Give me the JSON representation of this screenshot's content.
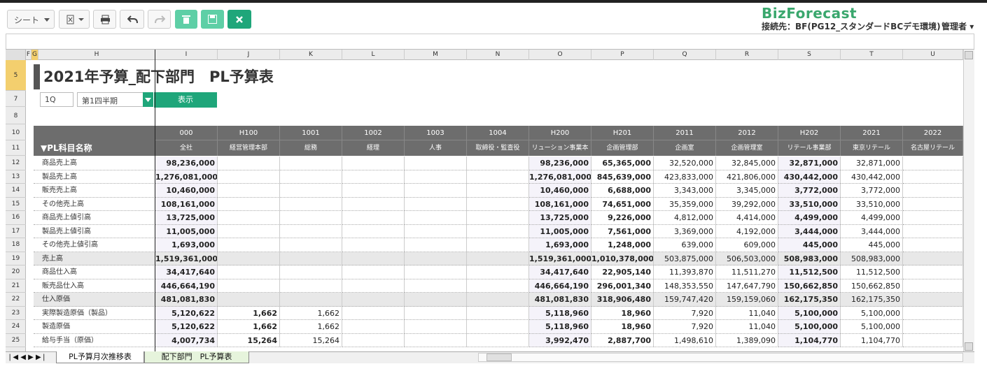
{
  "toolbar": {
    "sheet_menu": "シート",
    "logo": "BizForecast",
    "connection": "接続先：BF(PG12_スタンダードBCデモ環境)",
    "user": "管理者"
  },
  "grid": {
    "column_letters": [
      "F",
      "G",
      "H",
      "I",
      "J",
      "K",
      "L",
      "M",
      "N",
      "O",
      "P",
      "Q",
      "R",
      "S",
      "T",
      "U"
    ],
    "row_numbers": [
      5,
      7,
      8,
      10,
      11,
      12,
      13,
      14,
      15,
      16,
      17,
      18,
      19,
      20,
      21,
      22,
      23,
      24,
      25
    ]
  },
  "sheet": {
    "title": "2021年予算_配下部門　PL予算表",
    "period_code": "1Q",
    "period_select": "第1四半期",
    "show_button": "表示",
    "codes": [
      "000",
      "H100",
      "1001",
      "1002",
      "1003",
      "1004",
      "H200",
      "H201",
      "2011",
      "2012",
      "H202",
      "2021",
      "2022"
    ],
    "header_label": "▼PL科目名称",
    "departments": [
      "全社",
      "経営管理本部",
      "総務",
      "経理",
      "人事",
      "取締役・監査役",
      "リューション事業本",
      "企画管理部",
      "企画室",
      "企画管理室",
      "リテール事業部",
      "東京リテール",
      "名古屋リテール"
    ],
    "rows": [
      {
        "label": "商品売上高",
        "cells": [
          "98,236,000",
          null,
          null,
          null,
          null,
          null,
          "98,236,000",
          "65,365,000",
          "32,520,000",
          "32,845,000",
          "32,871,000",
          "32,871,000",
          null
        ]
      },
      {
        "label": "製品売上高",
        "cells": [
          "1,276,081,000",
          null,
          null,
          null,
          null,
          null,
          "1,276,081,000",
          "845,639,000",
          "423,833,000",
          "421,806,000",
          "430,442,000",
          "430,442,000",
          null
        ]
      },
      {
        "label": "販売売上高",
        "cells": [
          "10,460,000",
          null,
          null,
          null,
          null,
          null,
          "10,460,000",
          "6,688,000",
          "3,343,000",
          "3,345,000",
          "3,772,000",
          "3,772,000",
          null
        ]
      },
      {
        "label": "その他売上高",
        "cells": [
          "108,161,000",
          null,
          null,
          null,
          null,
          null,
          "108,161,000",
          "74,651,000",
          "35,359,000",
          "39,292,000",
          "33,510,000",
          "33,510,000",
          null
        ]
      },
      {
        "label": "商品売上値引高",
        "cells": [
          "13,725,000",
          null,
          null,
          null,
          null,
          null,
          "13,725,000",
          "9,226,000",
          "4,812,000",
          "4,414,000",
          "4,499,000",
          "4,499,000",
          null
        ]
      },
      {
        "label": "製品売上値引高",
        "cells": [
          "11,005,000",
          null,
          null,
          null,
          null,
          null,
          "11,005,000",
          "7,561,000",
          "3,369,000",
          "4,192,000",
          "3,444,000",
          "3,444,000",
          null
        ]
      },
      {
        "label": "その他売上値引高",
        "cells": [
          "1,693,000",
          null,
          null,
          null,
          null,
          null,
          "1,693,000",
          "1,248,000",
          "639,000",
          "609,000",
          "445,000",
          "445,000",
          null
        ]
      },
      {
        "label": "売上高",
        "cells": [
          "1,519,361,000",
          null,
          null,
          null,
          null,
          null,
          "1,519,361,000",
          "1,010,378,000",
          "503,875,000",
          "506,503,000",
          "508,983,000",
          "508,983,000",
          null
        ]
      },
      {
        "label": "商品仕入高",
        "cells": [
          "34,417,640",
          null,
          null,
          null,
          null,
          null,
          "34,417,640",
          "22,905,140",
          "11,393,870",
          "11,511,270",
          "11,512,500",
          "11,512,500",
          null
        ]
      },
      {
        "label": "販売品仕入高",
        "cells": [
          "446,664,190",
          null,
          null,
          null,
          null,
          null,
          "446,664,190",
          "296,001,340",
          "148,353,550",
          "147,647,790",
          "150,662,850",
          "150,662,850",
          null
        ]
      },
      {
        "label": "仕入原価",
        "cells": [
          "481,081,830",
          null,
          null,
          null,
          null,
          null,
          "481,081,830",
          "318,906,480",
          "159,747,420",
          "159,159,060",
          "162,175,350",
          "162,175,350",
          null
        ]
      },
      {
        "label": "実際製造原価（製品）",
        "cells": [
          "5,120,622",
          "1,662",
          "1,662",
          null,
          null,
          null,
          "5,118,960",
          "18,960",
          "7,920",
          "11,040",
          "5,100,000",
          "5,100,000",
          null
        ]
      },
      {
        "label": "製造原価",
        "cells": [
          "5,120,622",
          "1,662",
          "1,662",
          null,
          null,
          null,
          "5,118,960",
          "18,960",
          "7,920",
          "11,040",
          "5,100,000",
          "5,100,000",
          null
        ]
      },
      {
        "label": "給与手当（原価）",
        "cells": [
          "4,007,734",
          "15,264",
          "15,264",
          null,
          null,
          null,
          "3,992,470",
          "2,887,700",
          "1,498,610",
          "1,389,090",
          "1,104,770",
          "1,104,770",
          null
        ]
      }
    ]
  },
  "tabs": [
    "PL予算月次推移表",
    "配下部門　PL予算表"
  ]
}
